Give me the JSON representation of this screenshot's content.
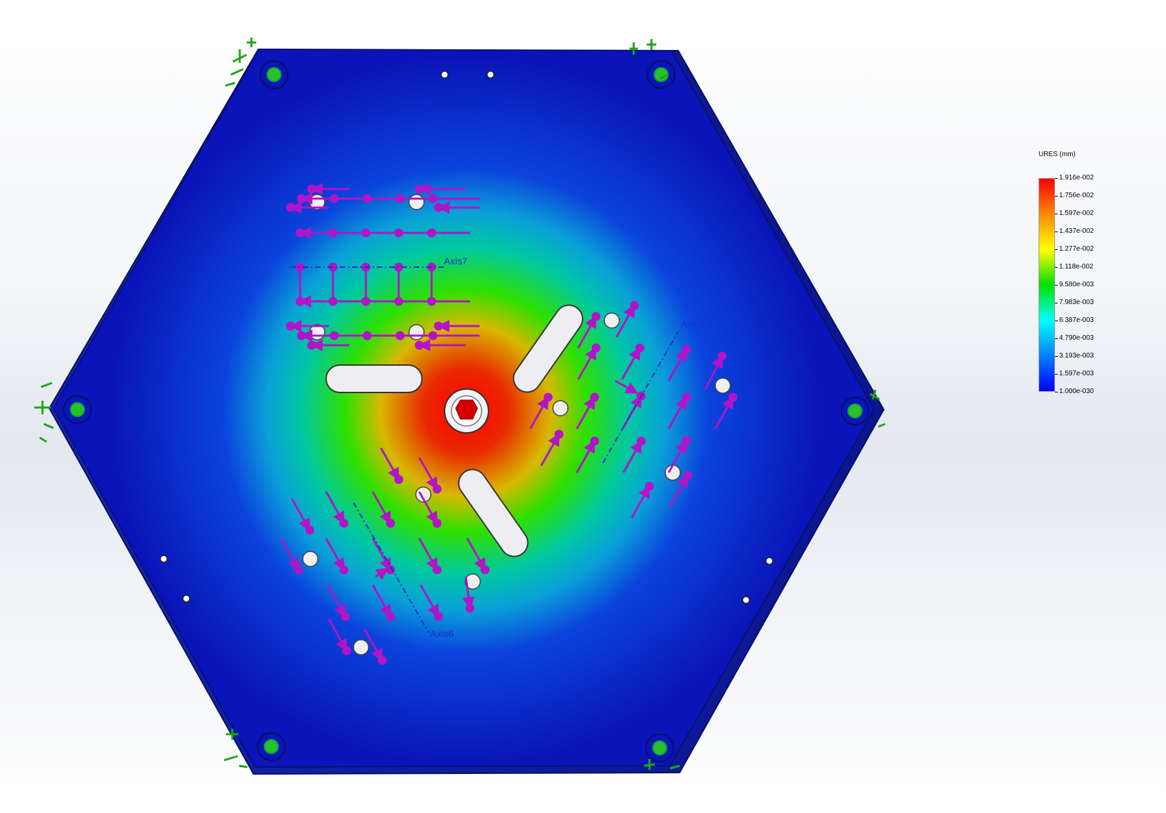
{
  "legend": {
    "title": "URES (mm)",
    "colormap": [
      "#ff0000",
      "#ff8800",
      "#ffff00",
      "#00e000",
      "#00ffff",
      "#0080ff",
      "#0000ff"
    ],
    "values": [
      "1.916e-002",
      "1.756e-002",
      "1.597e-002",
      "1.437e-002",
      "1.277e-002",
      "1.118e-002",
      "9.580e-003",
      "7.983e-003",
      "6.387e-003",
      "4.790e-003",
      "3.193e-003",
      "1.597e-003",
      "1.000e-030"
    ]
  },
  "annotations": {
    "axis7": "Axis7",
    "axis5": "Axis5",
    "axis6": "Axis6"
  },
  "colors": {
    "plate_low": "#0a1fc8",
    "plate_edge": "#0a1a9a",
    "load_arrow": "#b214c8",
    "fixture": "#2aa82a",
    "background": "#eef1f5"
  },
  "icons": {
    "fixture": "green-fixture-anchor-icon",
    "load": "magenta-force-arrow-icon"
  }
}
